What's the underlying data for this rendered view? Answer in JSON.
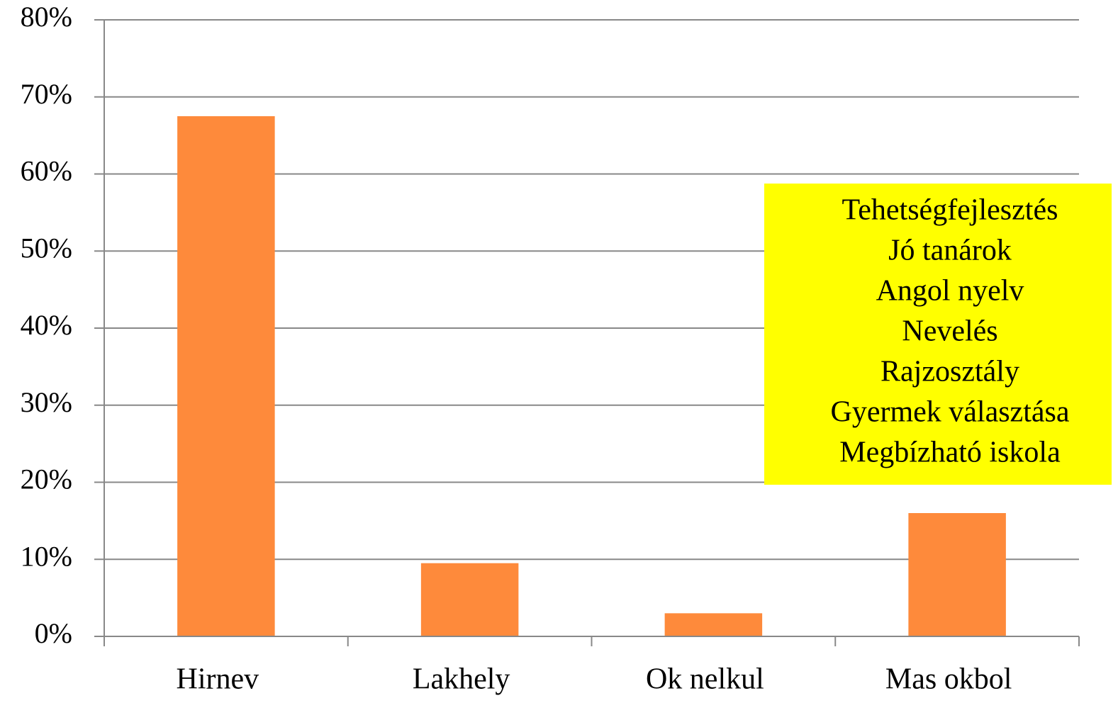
{
  "chart_data": {
    "type": "bar",
    "categories": [
      "Hirnev",
      "Lakhely",
      "Ok nelkul",
      "Mas okbol"
    ],
    "values": [
      67.5,
      9.5,
      3,
      16
    ],
    "color": "#fe8a3b",
    "ylim": [
      0,
      80
    ],
    "yticks": [
      {
        "value": 0,
        "label": "0%"
      },
      {
        "value": 10,
        "label": "10%"
      },
      {
        "value": 20,
        "label": "20%"
      },
      {
        "value": 30,
        "label": "30%"
      },
      {
        "value": 40,
        "label": "40%"
      },
      {
        "value": 50,
        "label": "50%"
      },
      {
        "value": 60,
        "label": "60%"
      },
      {
        "value": 70,
        "label": "70%"
      },
      {
        "value": 80,
        "label": "80%"
      }
    ],
    "grid": true,
    "annotation": [
      "Tehetségfejlesztés",
      "Jó tanárok",
      "Angol nyelv",
      "Nevelés",
      "Rajzosztály",
      "Gyermek választása",
      "Megbízható iskola"
    ],
    "annotation_color": "#ffff00"
  }
}
